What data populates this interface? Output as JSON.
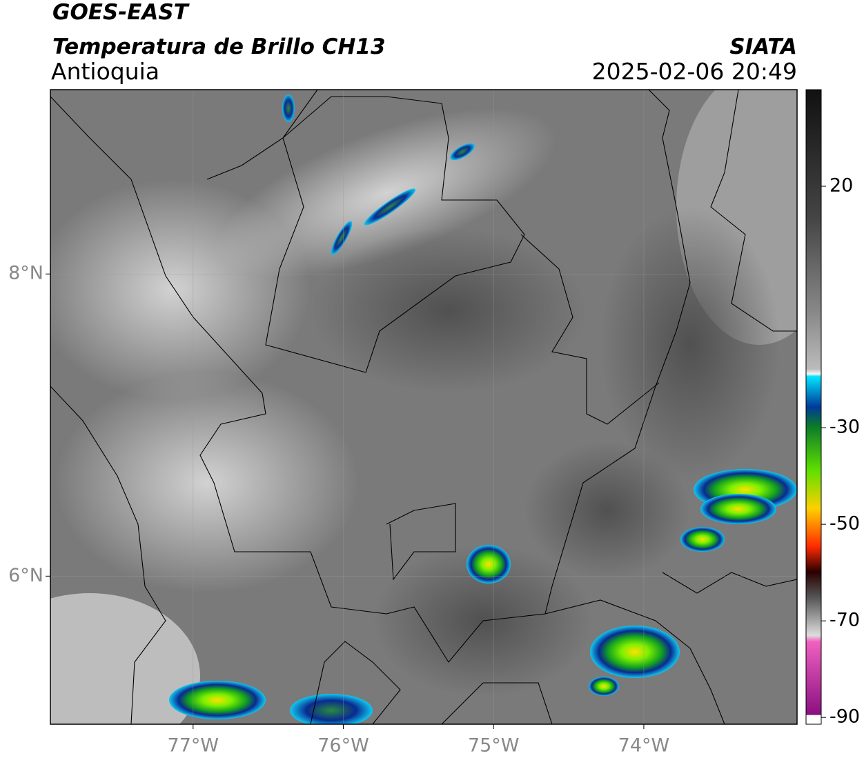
{
  "header": {
    "title": "GOES-EAST",
    "subtitle": "Temperatura de Brillo CH13",
    "region": "Antioquia",
    "source": "SIATA",
    "datetime": "2025-02-06 20:49"
  },
  "map": {
    "xlim": [
      -77.95,
      -72.98
    ],
    "ylim": [
      5.02,
      9.22
    ],
    "xticks": [
      {
        "value": -77,
        "label": "77°W"
      },
      {
        "value": -76,
        "label": "76°W"
      },
      {
        "value": -75,
        "label": "75°W"
      },
      {
        "value": -74,
        "label": "74°W"
      }
    ],
    "yticks": [
      {
        "value": 8,
        "label": "8°N"
      },
      {
        "value": 6,
        "label": "6°N"
      }
    ]
  },
  "colorbar": {
    "lim": [
      -91.4,
      40
    ],
    "ticks": [
      20,
      -30,
      -50,
      -70,
      -90
    ]
  }
}
